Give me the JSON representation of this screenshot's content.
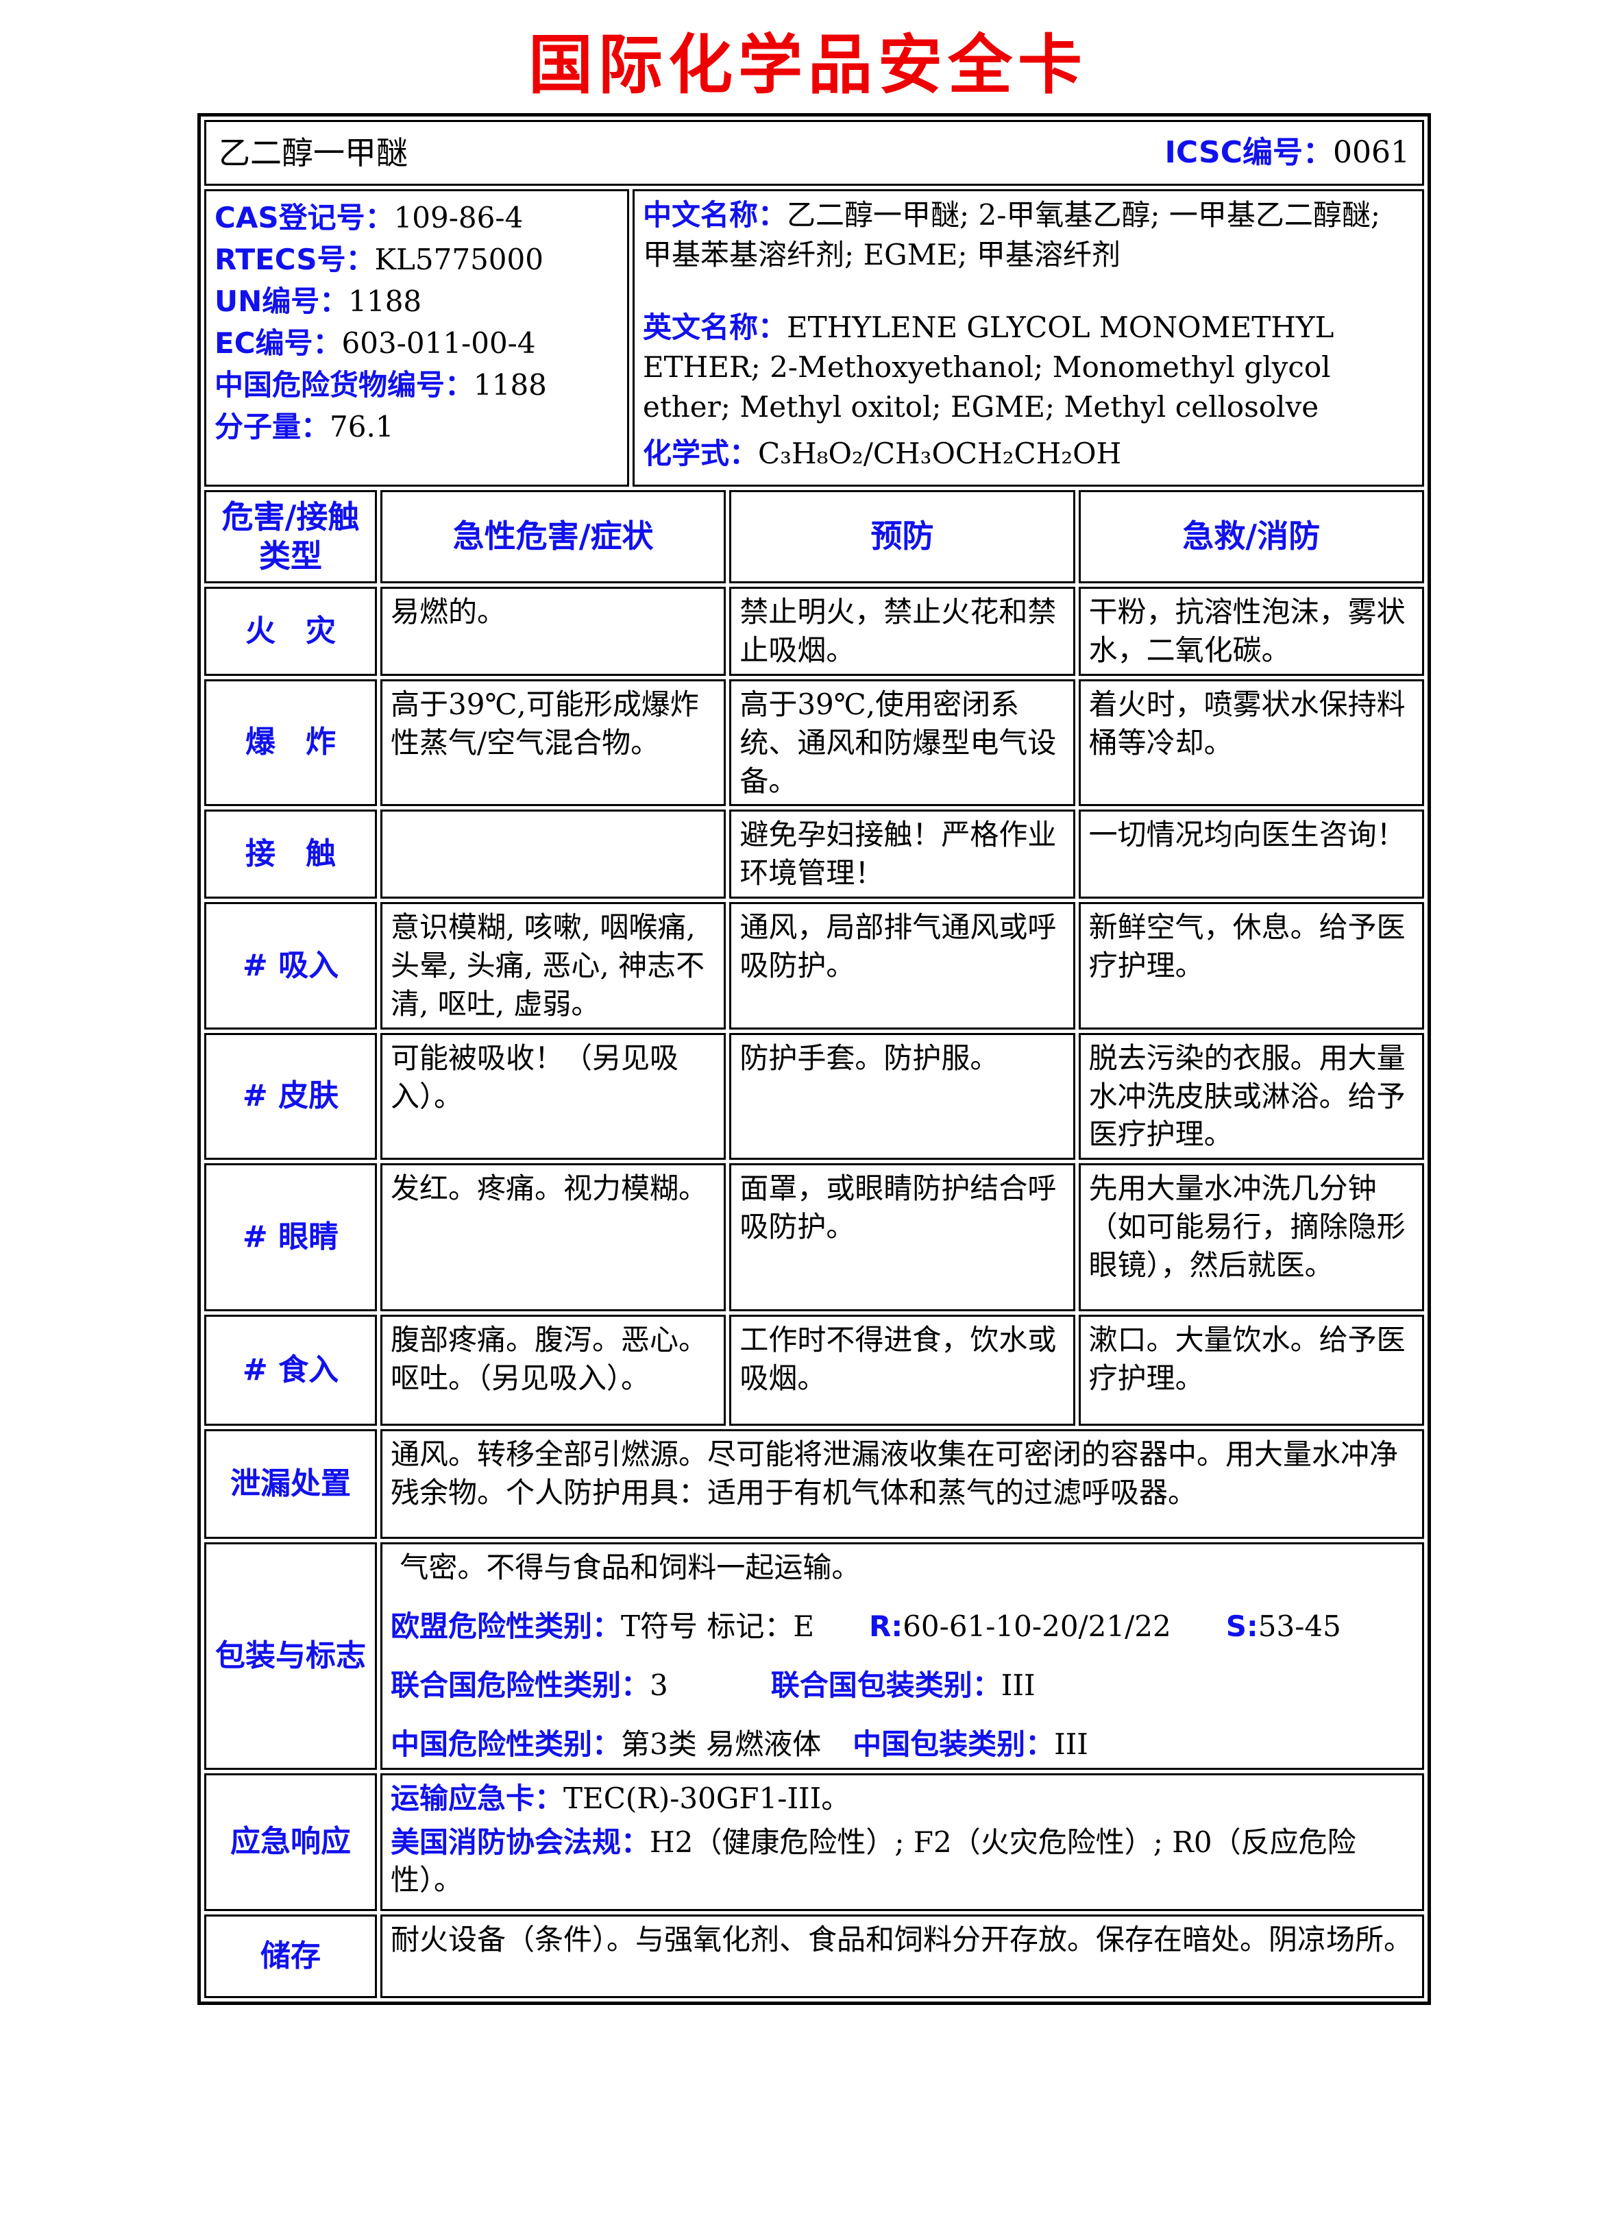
{
  "colors": {
    "label_blue": "#1111ee",
    "title_red": "#ee0000",
    "body_text": "#000000",
    "border": "#000000"
  },
  "page_title": "国际化学品安全卡",
  "card": {
    "name_row": {
      "substance_name": "乙二醇一甲醚",
      "icsc_label": "ICSC编号：",
      "icsc_value": "0061"
    },
    "identifiers": [
      {
        "label": "CAS登记号：",
        "value": "109-86-4"
      },
      {
        "label": "RTECS号：",
        "value": "KL5775000"
      },
      {
        "label": "UN编号：",
        "value": "1188"
      },
      {
        "label": "EC编号：",
        "value": "603-011-00-4"
      },
      {
        "label": "中国危险货物编号：",
        "value": "1188"
      },
      {
        "label": "分子量：",
        "value": "76.1"
      }
    ],
    "names": {
      "cn_label": "中文名称：",
      "cn_value": "乙二醇一甲醚; 2-甲氧基乙醇; 一甲基乙二醇醚; 甲基苯基溶纤剂; EGME; 甲基溶纤剂",
      "en_label": "英文名称：",
      "en_value": "ETHYLENE GLYCOL MONOMETHYL ETHER; 2-Methoxyethanol; Monomethyl glycol ether; Methyl oxitol; EGME; Methyl cellosolve",
      "formula_label": "化学式：",
      "formula_value": "C₃H₈O₂/CH₃OCH₂CH₂OH"
    },
    "hazard_header": {
      "type": "危害/接触类型",
      "symptoms": "急性危害/症状",
      "prevention": "预防",
      "firstaid": "急救/消防"
    },
    "hazard_rows": [
      {
        "type": "火　灾",
        "symptoms": "易燃的。",
        "prevention": "禁止明火，禁止火花和禁止吸烟。",
        "firstaid": "干粉，抗溶性泡沫，雾状水，二氧化碳。"
      },
      {
        "type": "爆　炸",
        "symptoms": "高于39℃,可能形成爆炸性蒸气/空气混合物。",
        "prevention": "高于39℃,使用密闭系统、通风和防爆型电气设备。",
        "firstaid": "着火时，喷雾状水保持料桶等冷却。"
      },
      {
        "type": "接　触",
        "symptoms": "",
        "prevention": "避免孕妇接触！严格作业环境管理！",
        "firstaid": "一切情况均向医生咨询！"
      },
      {
        "type": "# 吸入",
        "symptoms": "意识模糊, 咳嗽, 咽喉痛, 头晕, 头痛, 恶心, 神志不清, 呕吐, 虚弱。",
        "prevention": "通风，局部排气通风或呼吸防护。",
        "firstaid": "新鲜空气，休息。给予医疗护理。"
      },
      {
        "type": "# 皮肤",
        "symptoms": "可能被吸收！（另见吸入）。",
        "prevention": "防护手套。防护服。",
        "firstaid": "脱去污染的衣服。用大量水冲洗皮肤或淋浴。给予医疗护理。"
      },
      {
        "type": "# 眼睛",
        "symptoms": "发红。疼痛。视力模糊。",
        "prevention": "面罩，或眼睛防护结合呼吸防护。",
        "firstaid": "先用大量水冲洗几分钟（如可能易行，摘除隐形眼镜），然后就医。"
      },
      {
        "type": "# 食入",
        "symptoms": "腹部疼痛。腹泻。恶心。呕吐。（另见吸入）。",
        "prevention": "工作时不得进食，饮水或吸烟。",
        "firstaid": "漱口。大量饮水。给予医疗护理。"
      }
    ],
    "spill": {
      "label": "泄漏处置",
      "text": "通风。转移全部引燃源。尽可能将泄漏液收集在可密闭的容器中。用大量水冲净残余物。个人防护用具：适用于有机气体和蒸气的过滤呼吸器。"
    },
    "packaging": {
      "label": "包装与标志",
      "line1": " 气密。不得与食品和饲料一起运输。",
      "eu_label": "欧盟危险性类别：",
      "eu_value": "T符号 标记：E",
      "r_label": "R:",
      "r_value": "60-61-10-20/21/22",
      "s_label": "S:",
      "s_value": "53-45",
      "un_class_label": "联合国危险性类别：",
      "un_class_value": "3",
      "un_pack_label": "联合国包装类别：",
      "un_pack_value": "III",
      "cn_class_label": "中国危险性类别：",
      "cn_class_value": "第3类 易燃液体",
      "cn_pack_label": "中国包装类别：",
      "cn_pack_value": "III"
    },
    "emergency": {
      "label": "应急响应",
      "tec_label": "运输应急卡：",
      "tec_value": "TEC(R)-30GF1-III。",
      "nfpa_label": "美国消防协会法规：",
      "nfpa_value": "H2（健康危险性）; F2（火灾危险性）; R0（反应危险性）。"
    },
    "storage": {
      "label": "储存",
      "text": "耐火设备（条件）。与强氧化剂、食品和饲料分开存放。保存在暗处。阴凉场所。"
    }
  }
}
